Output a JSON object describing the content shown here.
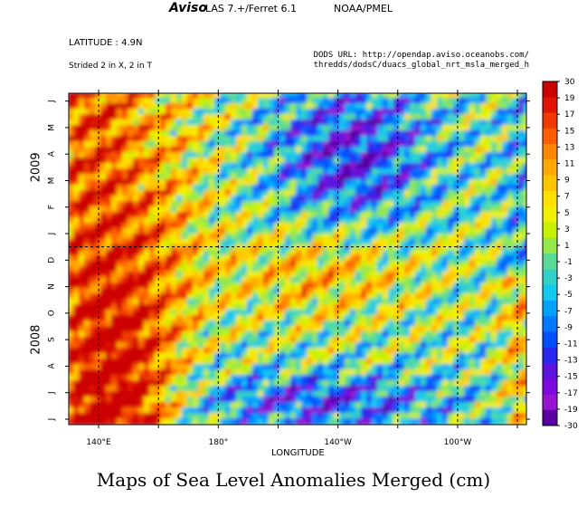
{
  "header": {
    "brand": "Aviso",
    "software": "LAS 7.+/Ferret 6.1",
    "org": "NOAA/PMEL",
    "latitude": "LATITUDE : 4.9N",
    "stride": "Strided 2 in X, 2 in T",
    "dods_line1": "DODS URL: http://opendap.aviso.oceanobs.com/",
    "dods_line2": "thredds/dodsC/duacs_global_nrt_msla_merged_h"
  },
  "caption": "Maps of Sea Level Anomalies Merged (cm)",
  "chart_data": {
    "type": "heatmap",
    "xlabel": "LONGITUDE",
    "ylabel": "",
    "x_ticks": [
      {
        "label": "140°E",
        "lon": 140
      },
      {
        "label": "180°",
        "lon": 180
      },
      {
        "label": "140°W",
        "lon": 220
      },
      {
        "label": "100°W",
        "lon": 260
      }
    ],
    "x_gridlines_lon": [
      140,
      160,
      180,
      200,
      220,
      240,
      260,
      280
    ],
    "xlim": [
      130,
      283
    ],
    "time_axis": {
      "months_2008": [
        "J",
        "J",
        "A",
        "S",
        "O",
        "N",
        "D"
      ],
      "months_2009": [
        "J",
        "F",
        "M",
        "A",
        "M",
        "J"
      ],
      "years": [
        "2008",
        "2009"
      ],
      "range": [
        "2008-06",
        "2009-06"
      ]
    },
    "colorbar": {
      "labels": [
        "30",
        "19",
        "17",
        "15",
        "13",
        "11",
        "9",
        "7",
        "5",
        "3",
        "1",
        "-1",
        "-3",
        "-5",
        "-7",
        "-9",
        "-11",
        "-13",
        "-15",
        "-17",
        "-19",
        "-30"
      ],
      "colors": [
        "#cc0000",
        "#e01400",
        "#f03a00",
        "#ff5e00",
        "#ff8800",
        "#ffaa00",
        "#ffc600",
        "#ffe000",
        "#f0f000",
        "#c8f000",
        "#96e84a",
        "#5adc96",
        "#32d2c8",
        "#14c8f0",
        "#00a0ff",
        "#0078ff",
        "#0050ff",
        "#2828f0",
        "#5a14dc",
        "#7d0adc",
        "#9614d2",
        "#5a00a0"
      ]
    }
  }
}
